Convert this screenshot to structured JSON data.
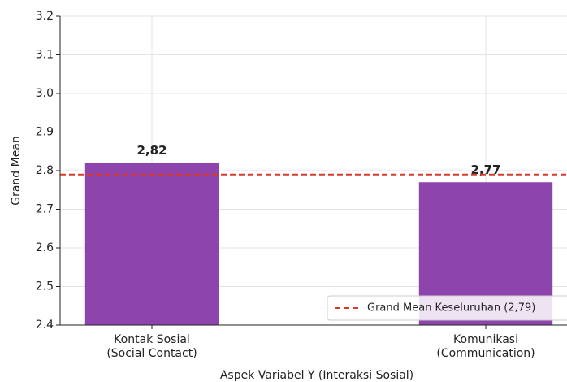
{
  "chart_data": {
    "type": "bar",
    "categories": [
      "Kontak Sosial\n(Social Contact)",
      "Komunikasi\n(Communication)"
    ],
    "values": [
      2.82,
      2.77
    ],
    "value_labels": [
      "2,82",
      "2,77"
    ],
    "color": "#8e44ad",
    "x_label": "Aspek Variabel Y (Interaksi Sosial)",
    "y_label": "Grand Mean",
    "ylim": [
      2.4,
      3.2
    ],
    "yticks": [
      2.4,
      2.5,
      2.6,
      2.7,
      2.8,
      2.9,
      {
        "value": 3,
        "label": "3.0"
      },
      3.1,
      3.2
    ],
    "grid": true,
    "reference_line": {
      "value": 2.79,
      "label": "Grand Mean Keseluruhan (2,79)",
      "color": "#d73a2a"
    },
    "legend": "lower right"
  }
}
